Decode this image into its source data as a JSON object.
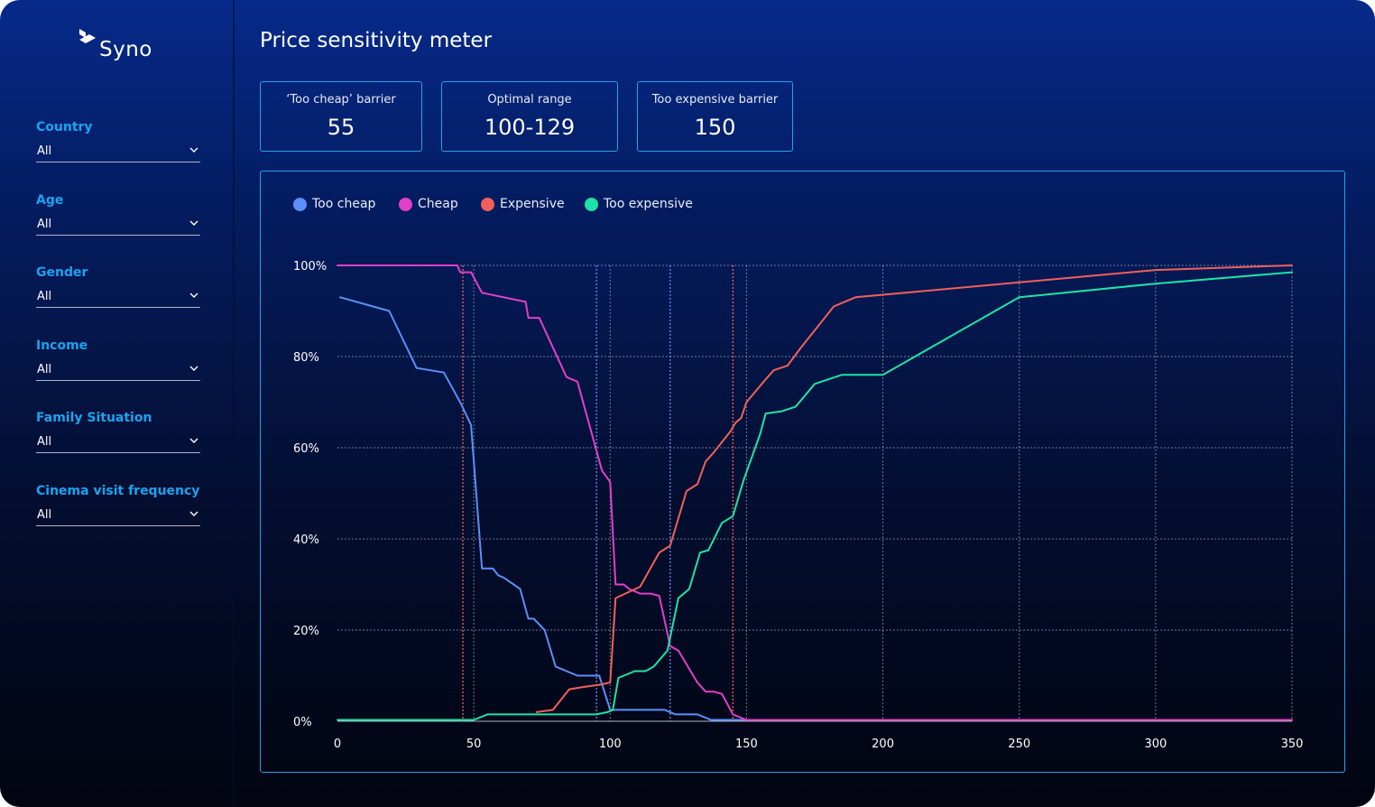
{
  "app": {
    "logo_text": "Syno"
  },
  "sidebar": {
    "filters": [
      {
        "label": "Country",
        "value": "All"
      },
      {
        "label": "Age",
        "value": "All"
      },
      {
        "label": "Gender",
        "value": "All"
      },
      {
        "label": "Income",
        "value": "All"
      },
      {
        "label": "Family Situation",
        "value": "All"
      },
      {
        "label": "Cinema visit frequency",
        "value": "All"
      }
    ]
  },
  "page": {
    "title": "Price sensitivity meter"
  },
  "kpis": [
    {
      "label": "‘Too cheap’ barrier",
      "value": "55"
    },
    {
      "label": "Optimal range",
      "value": "100-129"
    },
    {
      "label": "Too expensive barrier",
      "value": "150"
    }
  ],
  "icons": {
    "logo": "syno-logo-icon",
    "dropdown": "chevron-down-icon",
    "legend_marker": "circle-icon"
  },
  "colors": {
    "too_cheap": "#5b8ff9",
    "cheap": "#e23fc8",
    "expensive": "#f0605a",
    "too_expensive": "#1ee3a6",
    "accent": "#1aa4f0",
    "grid": "#c8cfdd"
  },
  "chart_data": {
    "type": "line",
    "title": "",
    "xlabel": "",
    "ylabel": "",
    "xlim": [
      0,
      350
    ],
    "ylim": [
      0,
      100
    ],
    "x_ticks": [
      0,
      50,
      100,
      150,
      200,
      250,
      300,
      350
    ],
    "y_ticks": [
      0,
      20,
      40,
      60,
      80,
      100
    ],
    "y_tick_labels": [
      "0%",
      "20%",
      "40%",
      "60%",
      "80%",
      "100%"
    ],
    "grid": true,
    "legend_position": "top-left",
    "reference_lines": [
      {
        "x": 46,
        "color": "#f0605a"
      },
      {
        "x": 95,
        "color": "#5b8ff9"
      },
      {
        "x": 122,
        "color": "#5b8ff9"
      },
      {
        "x": 145,
        "color": "#f0605a"
      }
    ],
    "series": [
      {
        "name": "Too cheap",
        "color": "#5b8ff9",
        "x": [
          1,
          19,
          29,
          39,
          45,
          49,
          53,
          57,
          59,
          61,
          67,
          70,
          72,
          76,
          80,
          88,
          92,
          96,
          100,
          102,
          120,
          124,
          132,
          137,
          350
        ],
        "y": [
          93,
          90,
          77.5,
          76.5,
          70,
          65,
          33.5,
          33.5,
          32,
          31.5,
          29,
          22.5,
          22.5,
          20,
          12,
          10,
          10,
          10,
          2.5,
          2.5,
          2.5,
          1.5,
          1.5,
          0.3,
          0.3
        ]
      },
      {
        "name": "Cheap",
        "color": "#e23fc8",
        "x": [
          0,
          44,
          45,
          48,
          49,
          53,
          69,
          70,
          74,
          84,
          88,
          97,
          100,
          102,
          105,
          107,
          111,
          115,
          118,
          122,
          125,
          132,
          135,
          138,
          141,
          145,
          150,
          350
        ],
        "y": [
          100,
          100,
          98.5,
          98.5,
          98.5,
          94,
          92,
          88.5,
          88.5,
          75.5,
          74.5,
          55,
          52.5,
          30,
          30,
          29,
          28,
          28,
          27.5,
          16.5,
          15.5,
          8.5,
          6.5,
          6.5,
          6,
          1.5,
          0.3,
          0.3
        ]
      },
      {
        "name": "Expensive",
        "color": "#f0605a",
        "x": [
          73,
          79,
          85,
          90,
          96,
          100,
          102,
          111,
          118,
          122,
          128,
          132,
          135,
          138,
          144,
          146,
          148,
          150,
          157,
          160,
          165,
          170,
          182,
          190,
          300,
          350
        ],
        "y": [
          2,
          2.5,
          7,
          7.5,
          8,
          8.5,
          27,
          29.5,
          37,
          38.5,
          50.5,
          52,
          57,
          59,
          63.5,
          65.5,
          66.5,
          70,
          75,
          77,
          78,
          82,
          91,
          93,
          99,
          100
        ]
      },
      {
        "name": "Too expensive",
        "color": "#1ee3a6",
        "x": [
          0,
          50,
          55,
          95,
          99,
          101,
          103,
          109,
          113,
          116,
          121,
          125,
          129,
          133,
          136,
          141,
          145,
          149,
          155,
          157,
          163,
          168,
          175,
          185,
          200,
          250,
          300,
          350
        ],
        "y": [
          0.3,
          0.3,
          1.5,
          1.5,
          2,
          2.5,
          9.5,
          11,
          11,
          12,
          15.5,
          27,
          29,
          37,
          37.5,
          43.5,
          45,
          53,
          63,
          67.5,
          68,
          69,
          74,
          76,
          76,
          93,
          96,
          98.5
        ]
      }
    ]
  }
}
